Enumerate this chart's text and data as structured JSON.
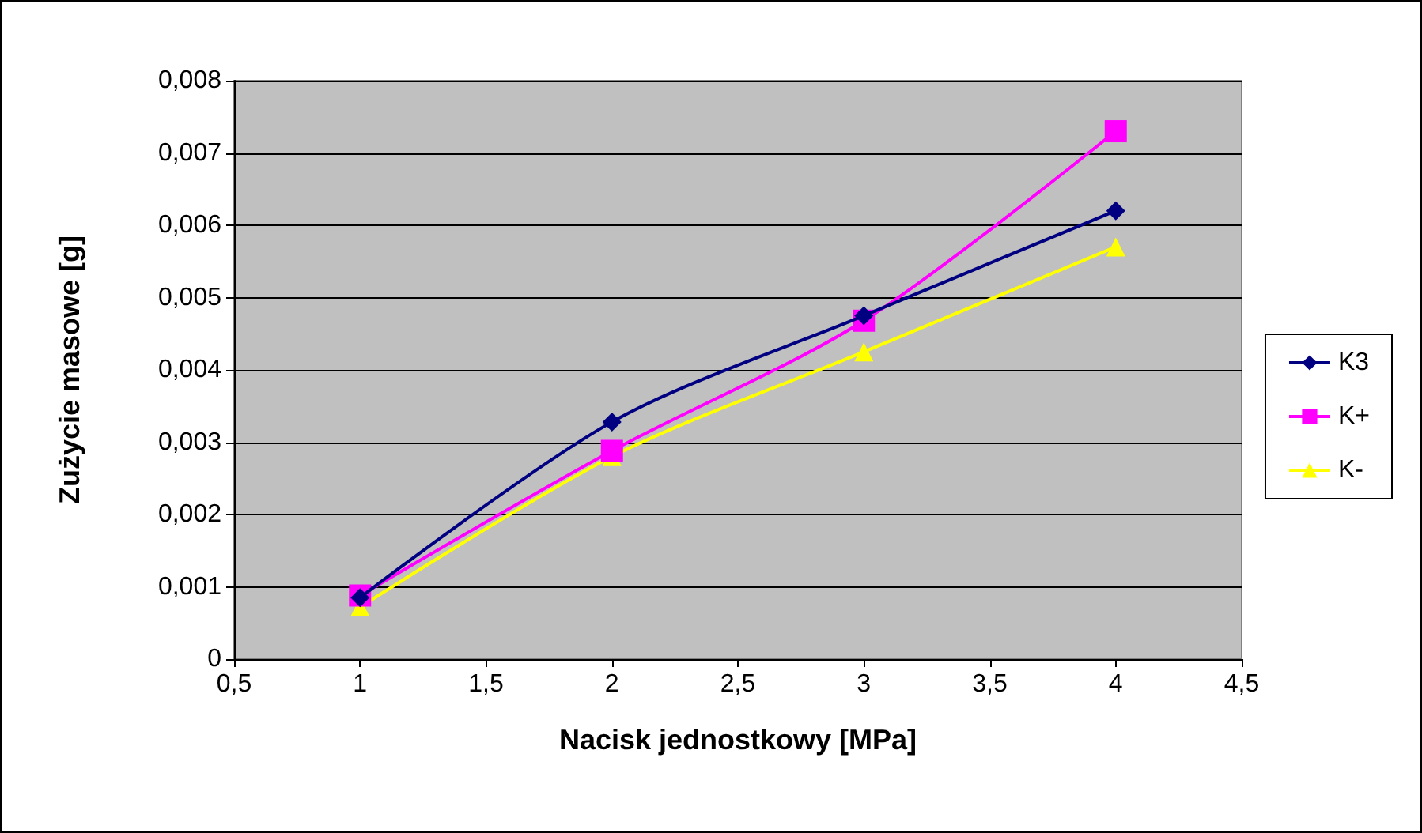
{
  "chart_data": {
    "type": "line",
    "xlabel": "Nacisk jednostkowy [MPa]",
    "ylabel": "Zużycie masowe [g]",
    "x": [
      1,
      2,
      3,
      4
    ],
    "series": [
      {
        "name": "K3",
        "color": "#000080",
        "marker": "diamond",
        "values": [
          0.00085,
          0.00328,
          0.00475,
          0.0062
        ]
      },
      {
        "name": "K+",
        "color": "#ff00ff",
        "marker": "square",
        "values": [
          0.00088,
          0.00288,
          0.00468,
          0.0073
        ]
      },
      {
        "name": "K-",
        "color": "#ffff00",
        "marker": "triangle",
        "values": [
          0.00072,
          0.0028,
          0.00425,
          0.0057
        ]
      }
    ],
    "xlim": [
      0.5,
      4.5
    ],
    "xticks": [
      {
        "value": 0.5,
        "label": "0,5"
      },
      {
        "value": 1,
        "label": "1"
      },
      {
        "value": 1.5,
        "label": "1,5"
      },
      {
        "value": 2,
        "label": "2"
      },
      {
        "value": 2.5,
        "label": "2,5"
      },
      {
        "value": 3,
        "label": "3"
      },
      {
        "value": 3.5,
        "label": "3,5"
      },
      {
        "value": 4,
        "label": "4"
      },
      {
        "value": 4.5,
        "label": "4,5"
      }
    ],
    "ylim": [
      0,
      0.008
    ],
    "yticks": [
      0,
      {
        "value": 0.001,
        "label": "0,001"
      },
      {
        "value": 0.002,
        "label": "0,002"
      },
      {
        "value": 0.003,
        "label": "0,003"
      },
      {
        "value": 0.004,
        "label": "0,004"
      },
      {
        "value": 0.005,
        "label": "0,005"
      },
      {
        "value": 0.006,
        "label": "0,006"
      },
      {
        "value": 0.007,
        "label": "0,007"
      },
      {
        "value": 0.008,
        "label": "0,008"
      }
    ],
    "grid": "y",
    "legend": "right",
    "line_style": "solid"
  }
}
